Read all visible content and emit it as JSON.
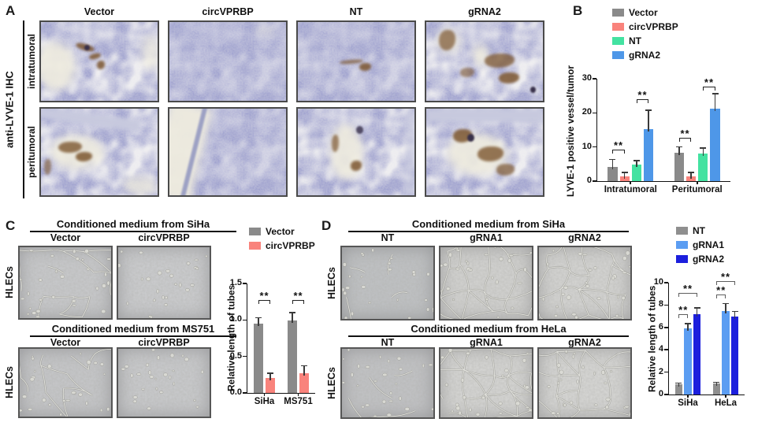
{
  "panels": {
    "A": {
      "letter": "A",
      "side_label": "anti-LYVE-1 IHC",
      "rows": [
        "intratumoral",
        "peritumoral"
      ],
      "cols": [
        "Vector",
        "circVPRBP",
        "NT",
        "gRNA2"
      ]
    },
    "B": {
      "letter": "B"
    },
    "C": {
      "letter": "C",
      "side_label": "HLECs",
      "blocks": [
        {
          "header": "Conditioned medium from SiHa",
          "cols": [
            "Vector",
            "circVPRBP"
          ]
        },
        {
          "header": "Conditioned medium from MS751",
          "cols": [
            "Vector",
            "circVPRBP"
          ]
        }
      ]
    },
    "D": {
      "letter": "D",
      "side_label": "HLECs",
      "blocks": [
        {
          "header": "Conditioned medium from SiHa",
          "cols": [
            "NT",
            "gRNA1",
            "gRNA2"
          ]
        },
        {
          "header": "Conditioned medium from HeLa",
          "cols": [
            "NT",
            "gRNA1",
            "gRNA2"
          ]
        }
      ]
    }
  },
  "chart_data": [
    {
      "id": "B",
      "type": "bar",
      "ylabel": "LYVE-1 positive vessel/tumor",
      "ylim": [
        0,
        30
      ],
      "yticks": [
        {
          "v": 0,
          "l": "0"
        },
        {
          "v": 10,
          "l": "10"
        },
        {
          "v": 20,
          "l": "20"
        },
        {
          "v": 30,
          "l": "30"
        }
      ],
      "categories": [
        "Intratumoral",
        "Peritumoral"
      ],
      "series": [
        {
          "name": "Vector",
          "color": "#8a8a8a",
          "values": [
            4.2,
            8.2
          ],
          "errors": [
            2.3,
            2.0
          ]
        },
        {
          "name": "circVPRBP",
          "color": "#f9837c",
          "values": [
            1.5,
            1.4
          ],
          "errors": [
            1.2,
            1.3
          ]
        },
        {
          "name": "NT",
          "color": "#43e2a1",
          "values": [
            4.8,
            8.0
          ],
          "errors": [
            1.4,
            1.9
          ]
        },
        {
          "name": "gRNA2",
          "color": "#4e97e8",
          "values": [
            15.3,
            21.2
          ],
          "errors": [
            5.6,
            4.6
          ]
        }
      ],
      "sig": [
        {
          "c": 0,
          "a": 0,
          "b": 1,
          "y": 8.0,
          "t": "**"
        },
        {
          "c": 0,
          "a": 2,
          "b": 3,
          "y": 22.8,
          "t": "**"
        },
        {
          "c": 1,
          "a": 0,
          "b": 1,
          "y": 11.5,
          "t": "**"
        },
        {
          "c": 1,
          "a": 2,
          "b": 3,
          "y": 26.5,
          "t": "**"
        }
      ],
      "sig_color": "#222222",
      "legend_position": "top"
    },
    {
      "id": "C",
      "type": "bar",
      "ylabel": "Relative length of tubes",
      "ylim": [
        0,
        1.5
      ],
      "yticks": [
        {
          "v": 0,
          "l": "0.0"
        },
        {
          "v": 0.5,
          "l": "0.5"
        },
        {
          "v": 1,
          "l": "1.0"
        },
        {
          "v": 1.5,
          "l": "1.5"
        }
      ],
      "categories": [
        "SiHa",
        "MS751"
      ],
      "series": [
        {
          "name": "Vector",
          "color": "#8a8a8a",
          "values": [
            0.95,
            0.99
          ],
          "errors": [
            0.09,
            0.12
          ]
        },
        {
          "name": "circVPRBP",
          "color": "#f9837c",
          "values": [
            0.21,
            0.27
          ],
          "errors": [
            0.07,
            0.11
          ]
        }
      ],
      "sig": [
        {
          "c": 0,
          "a": 0,
          "b": 1,
          "y": 1.22,
          "t": "**"
        },
        {
          "c": 1,
          "a": 0,
          "b": 1,
          "y": 1.22,
          "t": "**"
        }
      ],
      "sig_color": "#222222",
      "legend_position": "top"
    },
    {
      "id": "D",
      "type": "bar",
      "ylabel": "Relative length of tubes",
      "ylim": [
        0,
        10
      ],
      "yticks": [
        {
          "v": 0,
          "l": "0"
        },
        {
          "v": 2,
          "l": "2"
        },
        {
          "v": 4,
          "l": "4"
        },
        {
          "v": 6,
          "l": "6"
        },
        {
          "v": 8,
          "l": "8"
        },
        {
          "v": 10,
          "l": "10"
        }
      ],
      "categories": [
        "SiHa",
        "HeLa"
      ],
      "series": [
        {
          "name": "NT",
          "color": "#8f8f8f",
          "values": [
            0.95,
            1.0
          ],
          "errors": [
            0.12,
            0.15
          ]
        },
        {
          "name": "gRNA1",
          "color": "#5b9df2",
          "values": [
            5.9,
            7.5
          ],
          "errors": [
            0.5,
            0.7
          ]
        },
        {
          "name": "gRNA2",
          "color": "#1c1fdd",
          "values": [
            7.2,
            7.0
          ],
          "errors": [
            0.6,
            0.5
          ]
        }
      ],
      "sig": [
        {
          "c": 0,
          "a": 0,
          "b": 1,
          "y": 6.8,
          "t": "**"
        },
        {
          "c": 0,
          "a": 0,
          "b": 2,
          "y": 8.7,
          "t": "**"
        },
        {
          "c": 1,
          "a": 0,
          "b": 1,
          "y": 8.6,
          "t": "**"
        },
        {
          "c": 1,
          "a": 0,
          "b": 2,
          "y": 9.8,
          "t": "**"
        }
      ],
      "sig_color": "#5e5e5e",
      "legend_position": "top"
    }
  ]
}
